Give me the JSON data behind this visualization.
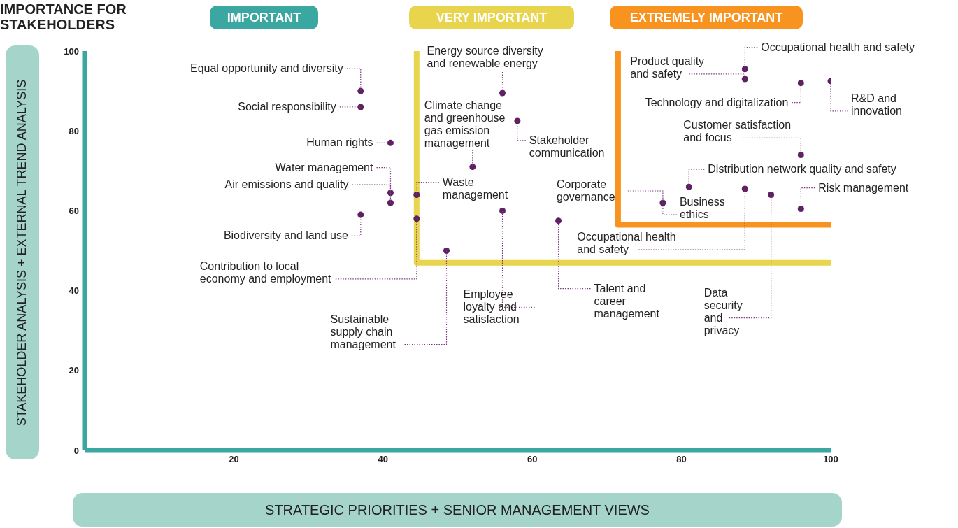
{
  "chart_data": {
    "type": "scatter",
    "xlabel": "STRATEGIC PRIORITIES + SENIOR MANAGEMENT VIEWS",
    "ylabel": "STAKEHOLDER ANALYSIS + EXTERNAL TREND ANALYSIS",
    "xlim": [
      0,
      100
    ],
    "ylim": [
      0,
      100
    ],
    "xticks": [
      20,
      40,
      60,
      80,
      100
    ],
    "yticks": [
      0,
      20,
      40,
      60,
      80,
      100
    ],
    "marker": "circle",
    "series": [
      {
        "color": "#5e2163",
        "x": [
          37,
          37,
          41,
          41,
          41,
          37,
          44.5,
          44.5,
          56,
          52,
          58,
          56,
          63.5,
          48.5,
          88.5,
          88.5,
          96,
          100,
          96,
          81,
          77.5,
          88.5,
          92,
          96
        ],
        "values": [
          90,
          86,
          77,
          64.5,
          62,
          59,
          58,
          64,
          89.5,
          71,
          82.5,
          60,
          57.5,
          50,
          95.5,
          93,
          92,
          92.5,
          74,
          66,
          62,
          65.5,
          64,
          60.5
        ]
      },
      {
        "type": "line",
        "marker": "none",
        "color": "#e8d44d",
        "x": [
          44.5,
          44.5,
          100
        ],
        "values": [
          100,
          47,
          47
        ]
      },
      {
        "type": "line",
        "marker": "none",
        "color": "#f7931e",
        "x": [
          71.5,
          71.5,
          100
        ],
        "values": [
          100,
          56.5,
          56.5
        ]
      }
    ],
    "annotations": [
      "IMPORTANCE FOR STAKEHOLDERS",
      "IMPORTANT",
      "VERY IMPORTANT",
      "EXTREMELY IMPORTANT",
      {
        "text": "Equal opportunity and diversity",
        "x": 37,
        "y": 90
      },
      {
        "text": "Social responsibility",
        "x": 37,
        "y": 86
      },
      {
        "text": "Human rights",
        "x": 41,
        "y": 77
      },
      {
        "text": "Water management",
        "x": 41,
        "y": 64.5
      },
      {
        "text": "Air emissions and quality",
        "x": 41,
        "y": 62
      },
      {
        "text": "Biodiversity and land use",
        "x": 37,
        "y": 59
      },
      {
        "text": "Contribution to local economy and employment",
        "x": 44.5,
        "y": 58
      },
      {
        "text": "Waste management",
        "x": 44.5,
        "y": 64
      },
      {
        "text": "Energy source diversity and renewable energy",
        "x": 56,
        "y": 89.5
      },
      {
        "text": "Climate change and greenhouse gas emission management",
        "x": 52,
        "y": 71
      },
      {
        "text": "Stakeholder communication",
        "x": 58,
        "y": 82.5
      },
      {
        "text": "Employee loyalty and satisfaction",
        "x": 56,
        "y": 60
      },
      {
        "text": "Talent and career management",
        "x": 63.5,
        "y": 57.5
      },
      {
        "text": "Sustainable supply chain management",
        "x": 48.5,
        "y": 50
      },
      {
        "text": "Occupational health and safety",
        "x": 88.5,
        "y": 95.5
      },
      {
        "text": "Product quality and safety",
        "x": 88.5,
        "y": 93
      },
      {
        "text": "Technology and digitalization",
        "x": 96,
        "y": 92
      },
      {
        "text": "R&D and innovation",
        "x": 100,
        "y": 92.5
      },
      {
        "text": "Customer satisfaction and focus",
        "x": 96,
        "y": 74
      },
      {
        "text": "Distribution network quality and safety",
        "x": 81,
        "y": 66
      },
      {
        "text": "Corporate governance",
        "x": 77.5,
        "y": 62
      },
      {
        "text": "Business ethics",
        "x": 77.5,
        "y": 62
      },
      {
        "text": "Occupational health and safety",
        "x": 88.5,
        "y": 65.5
      },
      {
        "text": "Data security and privacy",
        "x": 92,
        "y": 64
      },
      {
        "text": "Risk management",
        "x": 96,
        "y": 60.5
      }
    ]
  }
}
